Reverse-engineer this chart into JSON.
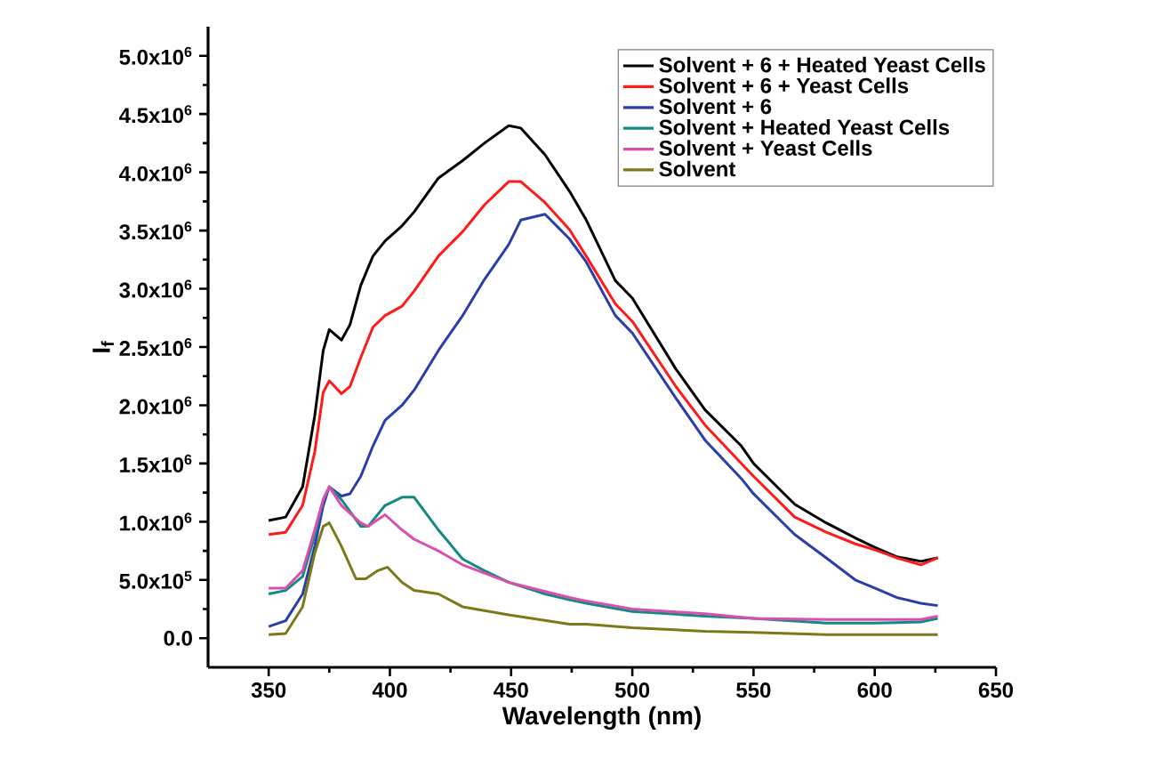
{
  "chart_data": {
    "type": "line",
    "xlabel": "Wavelength (nm)",
    "ylabel": "I$_{f}$",
    "xlim": [
      325,
      650
    ],
    "ylim": [
      -250000,
      5250000
    ],
    "xticks": [
      350,
      400,
      450,
      500,
      550,
      600,
      650
    ],
    "yticks": [
      {
        "value": 0,
        "label": "0.0"
      },
      {
        "value": 500000,
        "label": "5.0x10$^{5}$"
      },
      {
        "value": 1000000,
        "label": "1.0x10$^{6}$"
      },
      {
        "value": 1500000,
        "label": "1.5x10$^{6}$"
      },
      {
        "value": 2000000,
        "label": "2.0x10$^{6}$"
      },
      {
        "value": 2500000,
        "label": "2.5x10$^{6}$"
      },
      {
        "value": 3000000,
        "label": "3.0x10$^{6}$"
      },
      {
        "value": 3500000,
        "label": "3.5x10$^{6}$"
      },
      {
        "value": 4000000,
        "label": "4.0x10$^{6}$"
      },
      {
        "value": 4500000,
        "label": "4.5x10$^{6}$"
      },
      {
        "value": 5000000,
        "label": "5.0x10$^{6}$"
      }
    ],
    "legend": "top right",
    "line_style": "solid",
    "marker": "none",
    "series": [
      {
        "name": "Solvent + 6 + Heated Yeast Cells",
        "color": "#000000",
        "x": [
          350,
          357,
          364,
          369,
          372.5,
          375,
          380,
          383.5,
          388,
          393,
          398,
          405,
          410,
          420,
          430,
          439,
          449,
          454,
          464,
          474,
          481,
          493,
          500,
          518,
          530,
          545,
          550,
          567,
          580,
          592,
          600,
          609,
          619,
          626
        ],
        "values": [
          1010000,
          1040000,
          1300000,
          1910000,
          2470000,
          2650000,
          2560000,
          2690000,
          3030000,
          3280000,
          3410000,
          3540000,
          3660000,
          3950000,
          4100000,
          4250000,
          4400000,
          4380000,
          4150000,
          3840000,
          3590000,
          3070000,
          2920000,
          2310000,
          1960000,
          1650000,
          1500000,
          1150000,
          990000,
          860000,
          780000,
          700000,
          660000,
          690000
        ]
      },
      {
        "name": "Solvent + 6 + Yeast Cells",
        "color": "#ff1a1a",
        "x": [
          350,
          357,
          364,
          369,
          372.5,
          375,
          380,
          383.5,
          388,
          393,
          398,
          405,
          410,
          420,
          430,
          439,
          449,
          454,
          464,
          474,
          481,
          493,
          500,
          518,
          530,
          545,
          550,
          567,
          580,
          592,
          600,
          609,
          619,
          626
        ],
        "values": [
          890000,
          910000,
          1140000,
          1600000,
          2110000,
          2210000,
          2100000,
          2160000,
          2410000,
          2670000,
          2770000,
          2850000,
          2980000,
          3280000,
          3490000,
          3720000,
          3920000,
          3920000,
          3740000,
          3510000,
          3280000,
          2870000,
          2720000,
          2160000,
          1830000,
          1500000,
          1390000,
          1040000,
          910000,
          810000,
          760000,
          690000,
          630000,
          690000
        ]
      },
      {
        "name": "Solvent + 6",
        "color": "#2b3da8",
        "x": [
          350,
          357,
          364,
          369,
          372.5,
          375,
          380,
          383.5,
          388,
          393,
          398,
          405,
          410,
          420,
          430,
          439,
          449,
          454,
          464,
          474,
          481,
          493,
          500,
          518,
          530,
          545,
          550,
          567,
          580,
          592,
          600,
          609,
          619,
          626
        ],
        "values": [
          100000,
          150000,
          380000,
          790000,
          1140000,
          1300000,
          1220000,
          1240000,
          1390000,
          1650000,
          1870000,
          2000000,
          2130000,
          2470000,
          2770000,
          3080000,
          3380000,
          3590000,
          3640000,
          3430000,
          3230000,
          2770000,
          2620000,
          2060000,
          1700000,
          1370000,
          1240000,
          890000,
          690000,
          500000,
          430000,
          350000,
          300000,
          280000
        ]
      },
      {
        "name": "Solvent + Heated Yeast Cells",
        "color": "#138a80",
        "x": [
          350,
          357,
          364,
          369,
          372.5,
          375,
          380,
          388,
          391,
          398,
          405,
          410,
          420,
          430,
          439,
          449,
          464,
          474,
          481,
          500,
          530,
          550,
          580,
          600,
          619,
          626
        ],
        "values": [
          380000,
          410000,
          530000,
          880000,
          1190000,
          1300000,
          1190000,
          960000,
          960000,
          1140000,
          1210000,
          1210000,
          930000,
          680000,
          580000,
          480000,
          380000,
          330000,
          300000,
          230000,
          190000,
          170000,
          130000,
          130000,
          140000,
          170000
        ]
      },
      {
        "name": "Solvent + Yeast  Cells",
        "color": "#d94fb0",
        "x": [
          350,
          357,
          364,
          369,
          372.5,
          375,
          380,
          388,
          391,
          398,
          405,
          410,
          420,
          430,
          449,
          474,
          481,
          500,
          530,
          550,
          580,
          600,
          619,
          626
        ],
        "values": [
          430000,
          430000,
          580000,
          930000,
          1190000,
          1300000,
          1140000,
          990000,
          960000,
          1060000,
          930000,
          850000,
          750000,
          630000,
          480000,
          350000,
          320000,
          250000,
          210000,
          170000,
          160000,
          160000,
          160000,
          190000
        ]
      },
      {
        "name": "Solvent",
        "color": "#7a7a1a",
        "x": [
          350,
          357,
          364,
          369,
          372.5,
          375,
          380,
          386,
          390,
          395,
          399,
          405,
          410,
          420,
          430,
          449,
          474,
          481,
          500,
          530,
          550,
          580,
          600,
          626
        ],
        "values": [
          30000,
          40000,
          270000,
          730000,
          960000,
          990000,
          790000,
          510000,
          510000,
          580000,
          610000,
          480000,
          410000,
          380000,
          270000,
          200000,
          120000,
          120000,
          90000,
          60000,
          50000,
          30000,
          30000,
          30000
        ]
      }
    ]
  }
}
